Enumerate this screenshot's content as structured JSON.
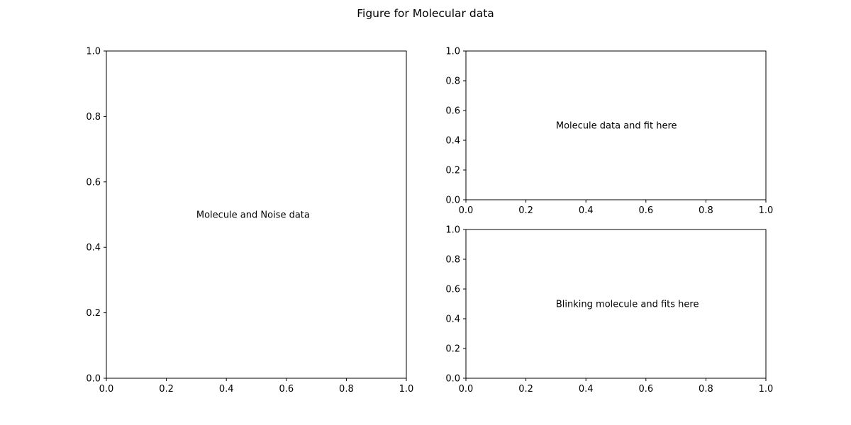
{
  "figure": {
    "suptitle": "Figure for Molecular data"
  },
  "chart_data": [
    {
      "type": "scatter",
      "title": "",
      "xlabel": "",
      "ylabel": "",
      "xlim": [
        0.0,
        1.0
      ],
      "ylim": [
        0.0,
        1.0
      ],
      "xticks": [
        0.0,
        0.2,
        0.4,
        0.6,
        0.8,
        1.0
      ],
      "xtick_labels": [
        "0.0",
        "0.2",
        "0.4",
        "0.6",
        "0.8",
        "1.0"
      ],
      "yticks": [
        0.0,
        0.2,
        0.4,
        0.6,
        0.8,
        1.0
      ],
      "ytick_labels": [
        "0.0",
        "0.2",
        "0.4",
        "0.6",
        "0.8",
        "1.0"
      ],
      "grid": false,
      "series": [],
      "annotations": [
        {
          "text": "Molecule and Noise data",
          "x": 0.3,
          "y": 0.5
        }
      ]
    },
    {
      "type": "scatter",
      "title": "",
      "xlabel": "",
      "ylabel": "",
      "xlim": [
        0.0,
        1.0
      ],
      "ylim": [
        0.0,
        1.0
      ],
      "xticks": [
        0.0,
        0.2,
        0.4,
        0.6,
        0.8,
        1.0
      ],
      "xtick_labels": [
        "0.0",
        "0.2",
        "0.4",
        "0.6",
        "0.8",
        "1.0"
      ],
      "yticks": [
        0.0,
        0.2,
        0.4,
        0.6,
        0.8,
        1.0
      ],
      "ytick_labels": [
        "0.0",
        "0.2",
        "0.4",
        "0.6",
        "0.8",
        "1.0"
      ],
      "grid": false,
      "series": [],
      "annotations": [
        {
          "text": "Molecule data and fit here",
          "x": 0.3,
          "y": 0.5
        }
      ]
    },
    {
      "type": "scatter",
      "title": "",
      "xlabel": "",
      "ylabel": "",
      "xlim": [
        0.0,
        1.0
      ],
      "ylim": [
        0.0,
        1.0
      ],
      "xticks": [
        0.0,
        0.2,
        0.4,
        0.6,
        0.8,
        1.0
      ],
      "xtick_labels": [
        "0.0",
        "0.2",
        "0.4",
        "0.6",
        "0.8",
        "1.0"
      ],
      "yticks": [
        0.0,
        0.2,
        0.4,
        0.6,
        0.8,
        1.0
      ],
      "ytick_labels": [
        "0.0",
        "0.2",
        "0.4",
        "0.6",
        "0.8",
        "1.0"
      ],
      "grid": false,
      "series": [],
      "annotations": [
        {
          "text": "Blinking molecule and fits here",
          "x": 0.3,
          "y": 0.5
        }
      ]
    }
  ]
}
